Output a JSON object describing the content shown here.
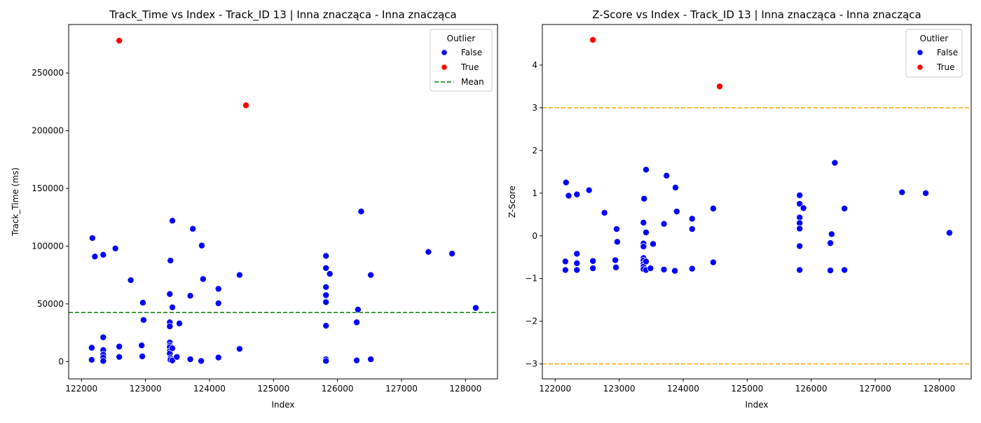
{
  "chart_data": [
    {
      "type": "scatter",
      "title": "Track_Time vs Index - Track_ID 13 | Inna znacząca - Inna znacząca",
      "xlabel": "Index",
      "ylabel": "Track_Time (ms)",
      "xlim": [
        121800,
        128500
      ],
      "ylim": [
        -15000,
        292000
      ],
      "xticks": [
        122000,
        123000,
        124000,
        125000,
        126000,
        127000,
        128000
      ],
      "yticks": [
        0,
        50000,
        100000,
        150000,
        200000,
        250000
      ],
      "grid": false,
      "legend": {
        "title": "Outlier",
        "placement": "upper right",
        "entries": [
          {
            "label": "False",
            "color": "#0000ff",
            "kind": "marker"
          },
          {
            "label": "True",
            "color": "#ff0000",
            "kind": "marker"
          },
          {
            "label": "Mean",
            "color": "#008000",
            "kind": "dashed-line"
          }
        ]
      },
      "hlines": [
        {
          "y": 42500,
          "color": "#008000",
          "name": "Mean"
        }
      ],
      "series": [
        {
          "name": "False",
          "color": "#0000ff",
          "points": [
            [
              122170,
              107000
            ],
            [
              122210,
              91000
            ],
            [
              122340,
              92500
            ],
            [
              122530,
              98000
            ],
            [
              122160,
              12000
            ],
            [
              122160,
              1500
            ],
            [
              122340,
              21000
            ],
            [
              122340,
              10000
            ],
            [
              122340,
              6000
            ],
            [
              122340,
              3500
            ],
            [
              122340,
              500
            ],
            [
              122590,
              13000
            ],
            [
              122590,
              4000
            ],
            [
              122770,
              70500
            ],
            [
              122960,
              51000
            ],
            [
              122970,
              36000
            ],
            [
              122940,
              14000
            ],
            [
              122950,
              4500
            ],
            [
              123380,
              58500
            ],
            [
              123390,
              87500
            ],
            [
              123380,
              34000
            ],
            [
              123380,
              30500
            ],
            [
              123380,
              16500
            ],
            [
              123380,
              14000
            ],
            [
              123380,
              12500
            ],
            [
              123380,
              9000
            ],
            [
              123380,
              7000
            ],
            [
              123390,
              3000
            ],
            [
              123390,
              1500
            ],
            [
              123420,
              122000
            ],
            [
              123420,
              47000
            ],
            [
              123420,
              11500
            ],
            [
              123420,
              1000
            ],
            [
              123490,
              4000
            ],
            [
              123530,
              33000
            ],
            [
              123740,
              115000
            ],
            [
              123700,
              57000
            ],
            [
              123700,
              2000
            ],
            [
              123880,
              100500
            ],
            [
              123900,
              71500
            ],
            [
              123870,
              500
            ],
            [
              124140,
              63000
            ],
            [
              124140,
              50500
            ],
            [
              124140,
              3500
            ],
            [
              124470,
              75000
            ],
            [
              124470,
              11000
            ],
            [
              125820,
              91500
            ],
            [
              125820,
              81000
            ],
            [
              125880,
              76000
            ],
            [
              125820,
              64500
            ],
            [
              125820,
              57500
            ],
            [
              125820,
              51500
            ],
            [
              125820,
              31000
            ],
            [
              125820,
              2000
            ],
            [
              125820,
              500
            ],
            [
              126370,
              130000
            ],
            [
              126320,
              45000
            ],
            [
              126300,
              34000
            ],
            [
              126300,
              1000
            ],
            [
              126520,
              75000
            ],
            [
              126520,
              2000
            ],
            [
              127420,
              95000
            ],
            [
              127790,
              93500
            ],
            [
              128160,
              46500
            ]
          ]
        },
        {
          "name": "True",
          "color": "#ff0000",
          "points": [
            [
              122590,
              278000
            ],
            [
              124570,
              222000
            ]
          ]
        }
      ]
    },
    {
      "type": "scatter",
      "title": "Z-Score vs Index - Track_ID 13 | Inna znacząca - Inna znacząca",
      "xlabel": "Index",
      "ylabel": "Z-Score",
      "xlim": [
        121800,
        128500
      ],
      "ylim": [
        -3.35,
        4.95
      ],
      "xticks": [
        122000,
        123000,
        124000,
        125000,
        126000,
        127000,
        128000
      ],
      "yticks": [
        -3,
        -2,
        -1,
        0,
        1,
        2,
        3,
        4
      ],
      "grid": false,
      "legend": {
        "title": "Outlier",
        "placement": "upper right",
        "entries": [
          {
            "label": "False",
            "color": "#0000ff",
            "kind": "marker"
          },
          {
            "label": "True",
            "color": "#ff0000",
            "kind": "marker"
          }
        ]
      },
      "hlines": [
        {
          "y": 3,
          "color": "#ffa500"
        },
        {
          "y": -3,
          "color": "#ffa500"
        }
      ],
      "series": [
        {
          "name": "False",
          "color": "#0000ff",
          "points": [
            [
              122170,
              1.25
            ],
            [
              122210,
              0.94
            ],
            [
              122340,
              0.97
            ],
            [
              122530,
              1.07
            ],
            [
              122160,
              -0.6
            ],
            [
              122160,
              -0.8
            ],
            [
              122340,
              -0.42
            ],
            [
              122340,
              -0.64
            ],
            [
              122340,
              -0.8
            ],
            [
              122590,
              -0.59
            ],
            [
              122590,
              -0.76
            ],
            [
              122770,
              0.54
            ],
            [
              122960,
              0.16
            ],
            [
              122970,
              -0.14
            ],
            [
              122940,
              -0.57
            ],
            [
              122950,
              -0.74
            ],
            [
              123380,
              0.31
            ],
            [
              123390,
              0.87
            ],
            [
              123380,
              -0.18
            ],
            [
              123380,
              -0.25
            ],
            [
              123380,
              -0.52
            ],
            [
              123380,
              -0.58
            ],
            [
              123380,
              -0.66
            ],
            [
              123380,
              -0.72
            ],
            [
              123380,
              -0.78
            ],
            [
              123420,
              1.55
            ],
            [
              123420,
              0.08
            ],
            [
              123420,
              -0.6
            ],
            [
              123420,
              -0.8
            ],
            [
              123490,
              -0.76
            ],
            [
              123530,
              -0.19
            ],
            [
              123740,
              1.41
            ],
            [
              123700,
              0.28
            ],
            [
              123700,
              -0.79
            ],
            [
              123880,
              1.13
            ],
            [
              123900,
              0.57
            ],
            [
              123870,
              -0.82
            ],
            [
              124140,
              0.4
            ],
            [
              124140,
              0.16
            ],
            [
              124140,
              -0.77
            ],
            [
              124470,
              0.64
            ],
            [
              124470,
              -0.62
            ],
            [
              125820,
              0.95
            ],
            [
              125820,
              0.75
            ],
            [
              125880,
              0.65
            ],
            [
              125820,
              0.43
            ],
            [
              125820,
              0.3
            ],
            [
              125820,
              0.17
            ],
            [
              125820,
              -0.24
            ],
            [
              125820,
              -0.8
            ],
            [
              126370,
              1.71
            ],
            [
              126320,
              0.04
            ],
            [
              126300,
              -0.17
            ],
            [
              126300,
              -0.81
            ],
            [
              126520,
              0.64
            ],
            [
              126520,
              -0.8
            ],
            [
              127420,
              1.02
            ],
            [
              127790,
              1.0
            ],
            [
              128160,
              0.07
            ]
          ]
        },
        {
          "name": "True",
          "color": "#ff0000",
          "points": [
            [
              122590,
              4.59
            ],
            [
              124570,
              3.5
            ]
          ]
        }
      ]
    }
  ]
}
